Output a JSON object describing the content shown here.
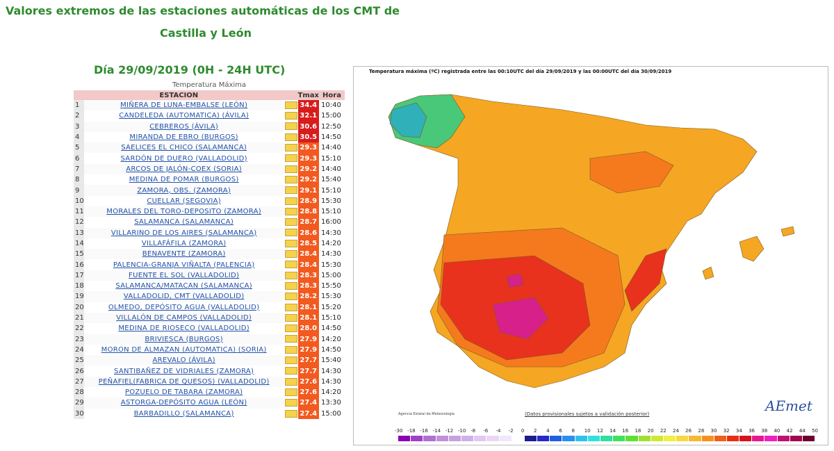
{
  "header": {
    "title_line1": "Valores extremos de las estaciones automáticas de los CMT de",
    "title_line2": "Castilla y León",
    "date": "Día 29/09/2019 (0H - 24H UTC)"
  },
  "table": {
    "caption": "Temperatura Máxima",
    "columns": [
      "ESTACION",
      "Tmax",
      "Hora"
    ],
    "rows": [
      {
        "n": "1",
        "station": "MIÑERA DE LUNA-EMBALSE (LEÓN)",
        "tmax": "34.4",
        "hora": "10:40",
        "color": "#d81c1c"
      },
      {
        "n": "2",
        "station": "CANDELEDA (AUTOMATICA) (ÁVILA)",
        "tmax": "32.1",
        "hora": "15:00",
        "color": "#d81c1c"
      },
      {
        "n": "3",
        "station": "CEBREROS (ÁVILA)",
        "tmax": "30.6",
        "hora": "12:50",
        "color": "#d81c1c"
      },
      {
        "n": "4",
        "station": "MIRANDA DE EBRO (BURGOS)",
        "tmax": "30.5",
        "hora": "14:50",
        "color": "#d81c1c"
      },
      {
        "n": "5",
        "station": "SAELICES EL CHICO (SALAMANCA)",
        "tmax": "29.3",
        "hora": "14:40",
        "color": "#f25a1f"
      },
      {
        "n": "6",
        "station": "SARDÓN DE DUERO (VALLADOLID)",
        "tmax": "29.3",
        "hora": "15:10",
        "color": "#f25a1f"
      },
      {
        "n": "7",
        "station": "ARCOS DE JALÓN-COEX (SORIA)",
        "tmax": "29.2",
        "hora": "14:40",
        "color": "#f25a1f"
      },
      {
        "n": "8",
        "station": "MEDINA DE POMAR (BURGOS)",
        "tmax": "29.2",
        "hora": "15:40",
        "color": "#f25a1f"
      },
      {
        "n": "9",
        "station": "ZAMORA, OBS. (ZAMORA)",
        "tmax": "29.1",
        "hora": "15:10",
        "color": "#f25a1f"
      },
      {
        "n": "10",
        "station": "CUELLAR (SEGOVIA)",
        "tmax": "28.9",
        "hora": "15:30",
        "color": "#f25a1f"
      },
      {
        "n": "11",
        "station": "MORALES DEL TORO-DEPOSITO (ZAMORA)",
        "tmax": "28.8",
        "hora": "15:10",
        "color": "#f25a1f"
      },
      {
        "n": "12",
        "station": "SALAMANCA (SALAMANCA)",
        "tmax": "28.7",
        "hora": "16:00",
        "color": "#f25a1f"
      },
      {
        "n": "13",
        "station": "VILLARINO DE LOS AIRES (SALAMANCA)",
        "tmax": "28.6",
        "hora": "14:30",
        "color": "#f25a1f"
      },
      {
        "n": "14",
        "station": "VILLAFÁFILA (ZAMORA)",
        "tmax": "28.5",
        "hora": "14:20",
        "color": "#f25a1f"
      },
      {
        "n": "15",
        "station": "BENAVENTE (ZAMORA)",
        "tmax": "28.4",
        "hora": "14:30",
        "color": "#f25a1f"
      },
      {
        "n": "16",
        "station": "PALENCIA-GRANJA VIÑALTA (PALENCIA)",
        "tmax": "28.4",
        "hora": "15:30",
        "color": "#f25a1f"
      },
      {
        "n": "17",
        "station": "FUENTE EL SOL (VALLADOLID)",
        "tmax": "28.3",
        "hora": "15:00",
        "color": "#f25a1f"
      },
      {
        "n": "18",
        "station": "SALAMANCA/MATACAN (SALAMANCA)",
        "tmax": "28.3",
        "hora": "15:50",
        "color": "#f25a1f"
      },
      {
        "n": "19",
        "station": "VALLADOLID, CMT (VALLADOLID)",
        "tmax": "28.2",
        "hora": "15:30",
        "color": "#f25a1f"
      },
      {
        "n": "20",
        "station": "OLMEDO, DEPÓSITO AGUA (VALLADOLID)",
        "tmax": "28.1",
        "hora": "15:20",
        "color": "#f25a1f"
      },
      {
        "n": "21",
        "station": "VILLALÓN DE CAMPOS (VALLADOLID)",
        "tmax": "28.1",
        "hora": "15:10",
        "color": "#f25a1f"
      },
      {
        "n": "22",
        "station": "MEDINA DE RIOSECO (VALLADOLID)",
        "tmax": "28.0",
        "hora": "14:50",
        "color": "#f25a1f"
      },
      {
        "n": "23",
        "station": "BRIVIESCA (BURGOS)",
        "tmax": "27.9",
        "hora": "14:20",
        "color": "#f25a1f"
      },
      {
        "n": "24",
        "station": "MORON DE ALMAZAN (AUTOMATICA) (SORIA)",
        "tmax": "27.9",
        "hora": "14:50",
        "color": "#f25a1f"
      },
      {
        "n": "25",
        "station": "AREVALO (ÁVILA)",
        "tmax": "27.7",
        "hora": "15:40",
        "color": "#f25a1f"
      },
      {
        "n": "26",
        "station": "SANTIBAÑEZ DE VIDRIALES (ZAMORA)",
        "tmax": "27.7",
        "hora": "14:30",
        "color": "#f25a1f"
      },
      {
        "n": "27",
        "station": "PEÑAFIEL(FABRICA DE QUESOS) (VALLADOLID)",
        "tmax": "27.6",
        "hora": "14:30",
        "color": "#f25a1f"
      },
      {
        "n": "28",
        "station": "POZUELO DE TABARA (ZAMORA)",
        "tmax": "27.6",
        "hora": "14:20",
        "color": "#f25a1f"
      },
      {
        "n": "29",
        "station": "ASTORGA-DEPÓSITO AGUA (LEÓN)",
        "tmax": "27.4",
        "hora": "13:30",
        "color": "#f25a1f"
      },
      {
        "n": "30",
        "station": "BARBADILLO (SALAMANCA)",
        "tmax": "27.4",
        "hora": "15:00",
        "color": "#f25a1f"
      }
    ]
  },
  "map": {
    "title": "Temperatura máxima (ºC) registrada entre las 00:10UTC del día 29/09/2019 y las 00:00UTC del día 30/09/2019",
    "agency": "Agencia Estatal de Meteorología",
    "provisional": "(Datos provisionales sujetos a validación posterior)",
    "logo": "AEmet",
    "legend_ticks": [
      "-30",
      "-18",
      "-16",
      "-14",
      "-12",
      "-10",
      "-8",
      "-6",
      "-4",
      "-2",
      "0",
      "2",
      "4",
      "6",
      "8",
      "10",
      "12",
      "14",
      "16",
      "18",
      "20",
      "22",
      "24",
      "26",
      "28",
      "30",
      "32",
      "34",
      "36",
      "38",
      "40",
      "42",
      "44",
      "50"
    ],
    "legend_colors": [
      "#8b00b5",
      "#a040c8",
      "#b070d0",
      "#c090d8",
      "#c8a0e0",
      "#d0b0e8",
      "#e0c8f0",
      "#e8d8f4",
      "#f0e8f8",
      "#ffffff",
      "#1c1c90",
      "#2828c8",
      "#2060e0",
      "#2890f0",
      "#30c0f0",
      "#30e0e0",
      "#30e0a0",
      "#40e060",
      "#60e030",
      "#a0e030",
      "#d0e830",
      "#f0f040",
      "#f8d840",
      "#f8b830",
      "#f89020",
      "#f06018",
      "#e83010",
      "#d81020",
      "#e81890",
      "#f020c0",
      "#c01070",
      "#a00850",
      "#700030"
    ],
    "map_palette": {
      "sea": "#ffffff",
      "base": "#f5a623",
      "warm": "#f57a1e",
      "hot": "#e8321e",
      "hottest": "#d8208a",
      "cool": "#48c878",
      "cold": "#30b0b8"
    }
  }
}
